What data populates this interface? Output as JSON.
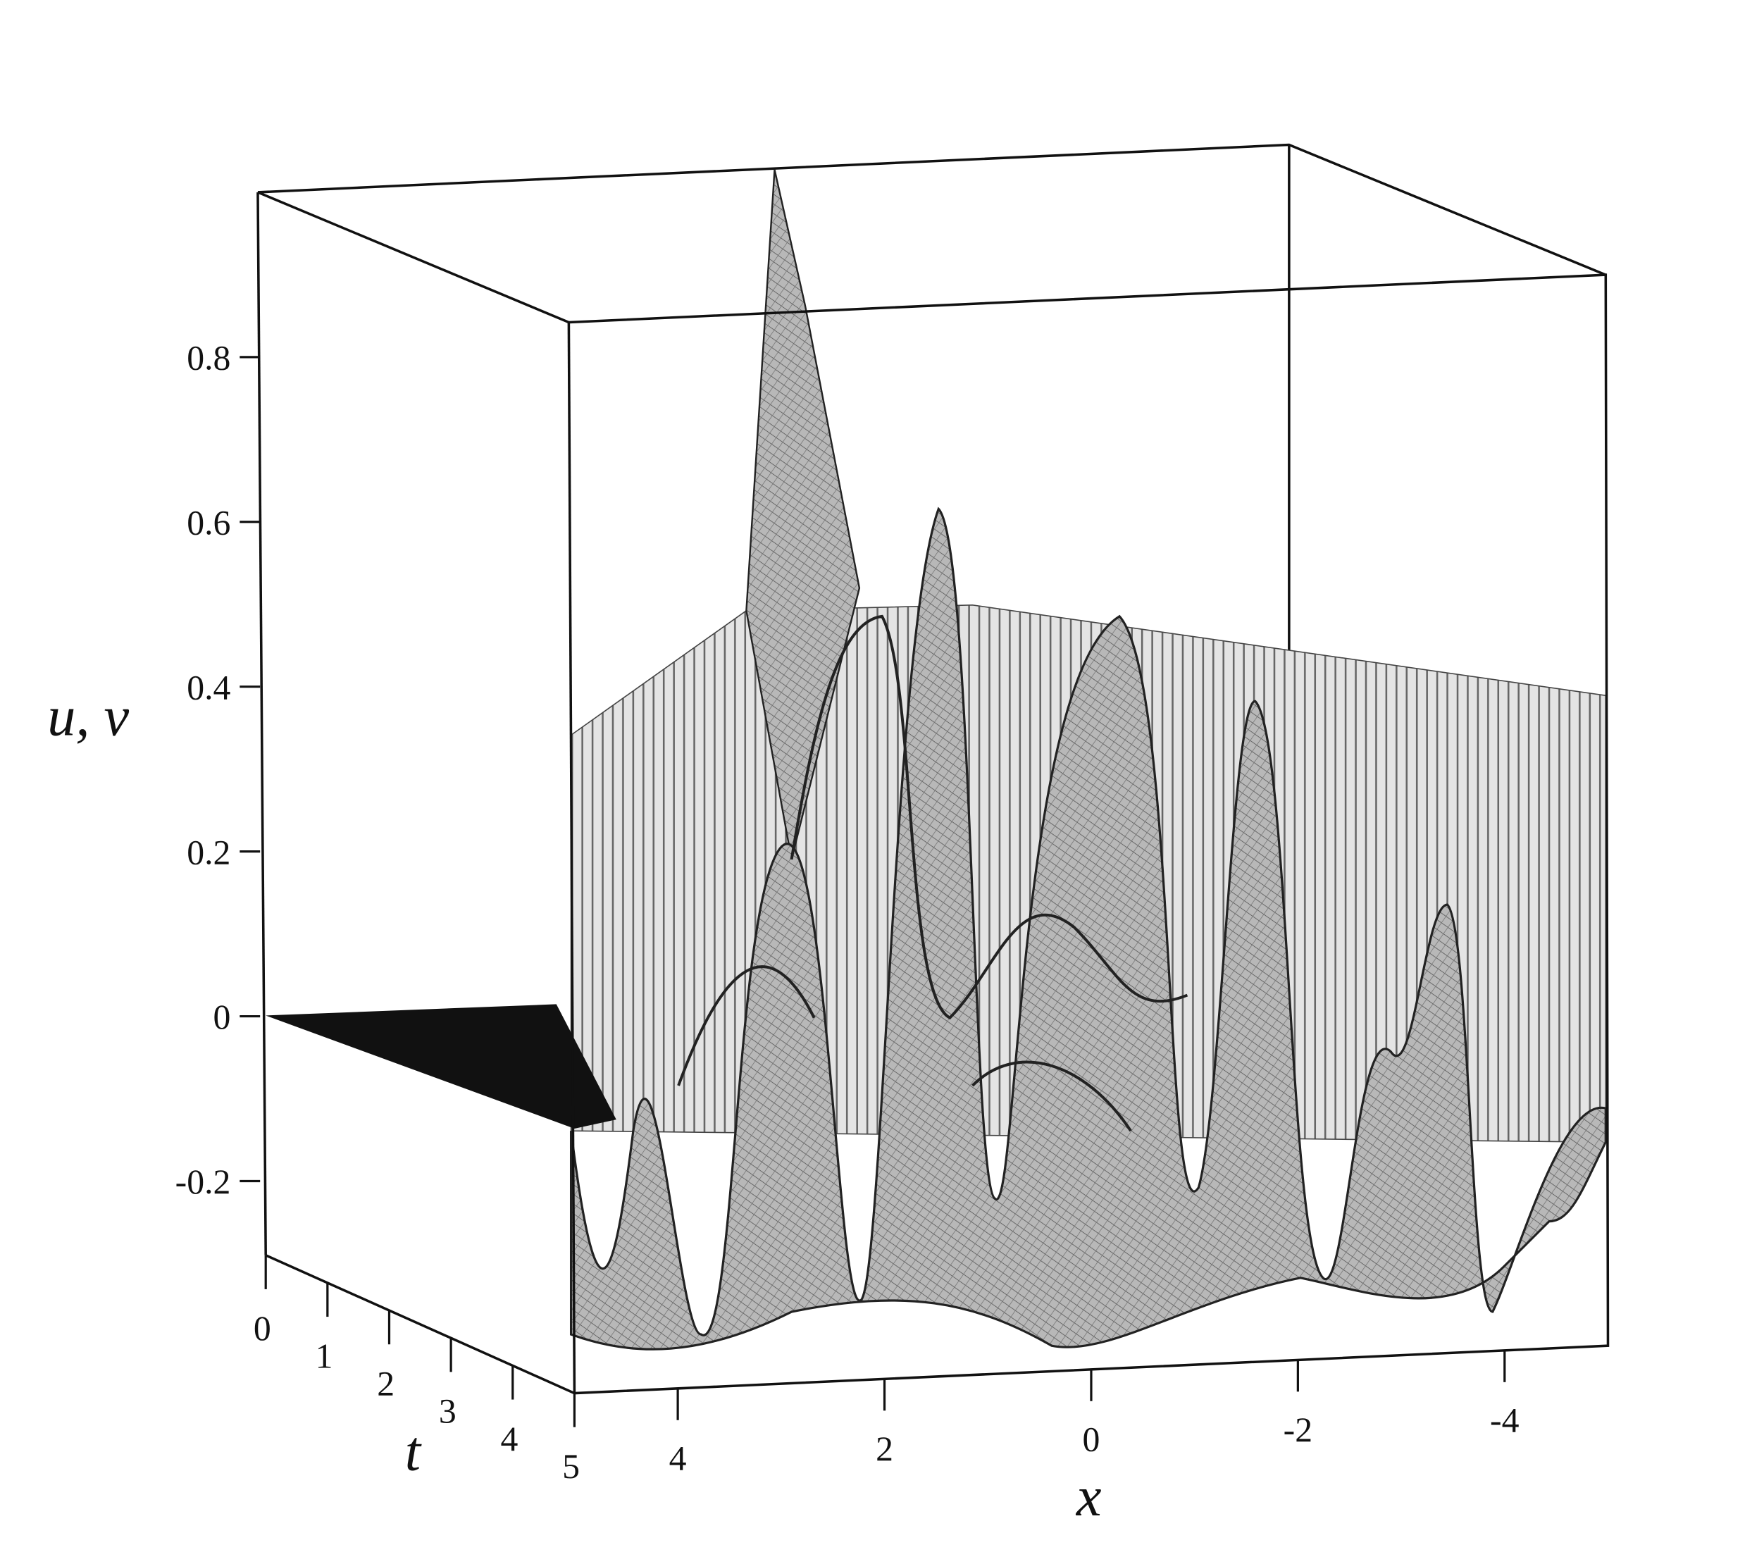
{
  "chart_data": {
    "type": "surface",
    "x_label": "x",
    "y_label": "t",
    "z_label": "u, v",
    "xlim": [
      5,
      -5
    ],
    "xticks": [
      4,
      2,
      0,
      -2,
      -4
    ],
    "ylim": [
      0,
      5
    ],
    "yticks": [
      0,
      1,
      2,
      3,
      4,
      5
    ],
    "zlim": [
      -0.29,
      1
    ],
    "zticks": [
      -0.2,
      0,
      0.2,
      0.4,
      0.6,
      0.8
    ]
  }
}
